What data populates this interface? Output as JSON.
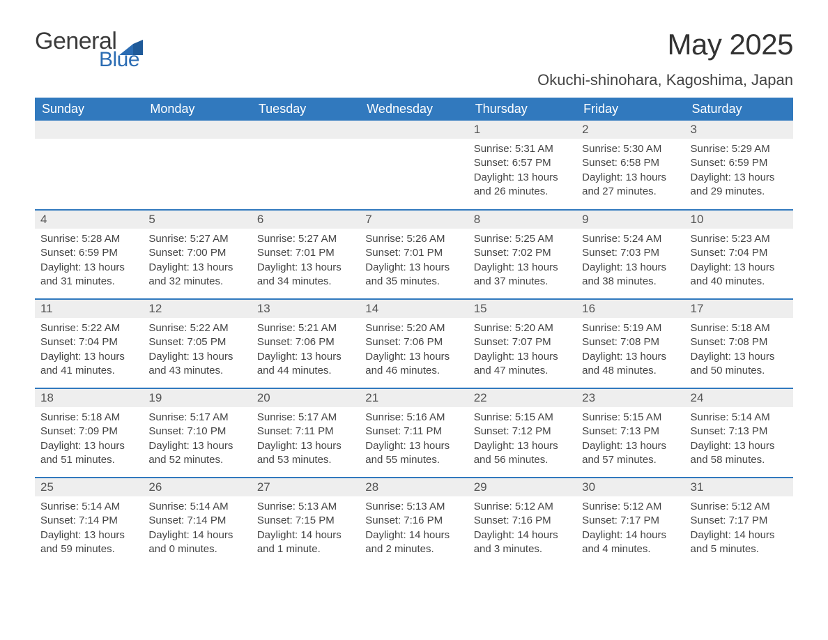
{
  "logo": {
    "general": "General",
    "blue": "Blue"
  },
  "title": "May 2025",
  "subtitle": "Okuchi-shinohara, Kagoshima, Japan",
  "colors": {
    "header_bg": "#3179be",
    "header_text": "#ffffff",
    "daynum_bg": "#eeeeee",
    "body_text": "#444444",
    "row_divider": "#3179be",
    "page_bg": "#ffffff",
    "logo_dark": "#3b3b3b",
    "logo_blue": "#2b6cb3"
  },
  "fontsizes": {
    "title": 42,
    "subtitle": 22,
    "weekday": 18,
    "daynum": 17,
    "body": 15
  },
  "weekdays": [
    "Sunday",
    "Monday",
    "Tuesday",
    "Wednesday",
    "Thursday",
    "Friday",
    "Saturday"
  ],
  "weeks": [
    [
      null,
      null,
      null,
      null,
      {
        "n": "1",
        "sunrise": "5:31 AM",
        "sunset": "6:57 PM",
        "daylight": "13 hours and 26 minutes."
      },
      {
        "n": "2",
        "sunrise": "5:30 AM",
        "sunset": "6:58 PM",
        "daylight": "13 hours and 27 minutes."
      },
      {
        "n": "3",
        "sunrise": "5:29 AM",
        "sunset": "6:59 PM",
        "daylight": "13 hours and 29 minutes."
      }
    ],
    [
      {
        "n": "4",
        "sunrise": "5:28 AM",
        "sunset": "6:59 PM",
        "daylight": "13 hours and 31 minutes."
      },
      {
        "n": "5",
        "sunrise": "5:27 AM",
        "sunset": "7:00 PM",
        "daylight": "13 hours and 32 minutes."
      },
      {
        "n": "6",
        "sunrise": "5:27 AM",
        "sunset": "7:01 PM",
        "daylight": "13 hours and 34 minutes."
      },
      {
        "n": "7",
        "sunrise": "5:26 AM",
        "sunset": "7:01 PM",
        "daylight": "13 hours and 35 minutes."
      },
      {
        "n": "8",
        "sunrise": "5:25 AM",
        "sunset": "7:02 PM",
        "daylight": "13 hours and 37 minutes."
      },
      {
        "n": "9",
        "sunrise": "5:24 AM",
        "sunset": "7:03 PM",
        "daylight": "13 hours and 38 minutes."
      },
      {
        "n": "10",
        "sunrise": "5:23 AM",
        "sunset": "7:04 PM",
        "daylight": "13 hours and 40 minutes."
      }
    ],
    [
      {
        "n": "11",
        "sunrise": "5:22 AM",
        "sunset": "7:04 PM",
        "daylight": "13 hours and 41 minutes."
      },
      {
        "n": "12",
        "sunrise": "5:22 AM",
        "sunset": "7:05 PM",
        "daylight": "13 hours and 43 minutes."
      },
      {
        "n": "13",
        "sunrise": "5:21 AM",
        "sunset": "7:06 PM",
        "daylight": "13 hours and 44 minutes."
      },
      {
        "n": "14",
        "sunrise": "5:20 AM",
        "sunset": "7:06 PM",
        "daylight": "13 hours and 46 minutes."
      },
      {
        "n": "15",
        "sunrise": "5:20 AM",
        "sunset": "7:07 PM",
        "daylight": "13 hours and 47 minutes."
      },
      {
        "n": "16",
        "sunrise": "5:19 AM",
        "sunset": "7:08 PM",
        "daylight": "13 hours and 48 minutes."
      },
      {
        "n": "17",
        "sunrise": "5:18 AM",
        "sunset": "7:08 PM",
        "daylight": "13 hours and 50 minutes."
      }
    ],
    [
      {
        "n": "18",
        "sunrise": "5:18 AM",
        "sunset": "7:09 PM",
        "daylight": "13 hours and 51 minutes."
      },
      {
        "n": "19",
        "sunrise": "5:17 AM",
        "sunset": "7:10 PM",
        "daylight": "13 hours and 52 minutes."
      },
      {
        "n": "20",
        "sunrise": "5:17 AM",
        "sunset": "7:11 PM",
        "daylight": "13 hours and 53 minutes."
      },
      {
        "n": "21",
        "sunrise": "5:16 AM",
        "sunset": "7:11 PM",
        "daylight": "13 hours and 55 minutes."
      },
      {
        "n": "22",
        "sunrise": "5:15 AM",
        "sunset": "7:12 PM",
        "daylight": "13 hours and 56 minutes."
      },
      {
        "n": "23",
        "sunrise": "5:15 AM",
        "sunset": "7:13 PM",
        "daylight": "13 hours and 57 minutes."
      },
      {
        "n": "24",
        "sunrise": "5:14 AM",
        "sunset": "7:13 PM",
        "daylight": "13 hours and 58 minutes."
      }
    ],
    [
      {
        "n": "25",
        "sunrise": "5:14 AM",
        "sunset": "7:14 PM",
        "daylight": "13 hours and 59 minutes."
      },
      {
        "n": "26",
        "sunrise": "5:14 AM",
        "sunset": "7:14 PM",
        "daylight": "14 hours and 0 minutes."
      },
      {
        "n": "27",
        "sunrise": "5:13 AM",
        "sunset": "7:15 PM",
        "daylight": "14 hours and 1 minute."
      },
      {
        "n": "28",
        "sunrise": "5:13 AM",
        "sunset": "7:16 PM",
        "daylight": "14 hours and 2 minutes."
      },
      {
        "n": "29",
        "sunrise": "5:12 AM",
        "sunset": "7:16 PM",
        "daylight": "14 hours and 3 minutes."
      },
      {
        "n": "30",
        "sunrise": "5:12 AM",
        "sunset": "7:17 PM",
        "daylight": "14 hours and 4 minutes."
      },
      {
        "n": "31",
        "sunrise": "5:12 AM",
        "sunset": "7:17 PM",
        "daylight": "14 hours and 5 minutes."
      }
    ]
  ],
  "labels": {
    "sunrise": "Sunrise: ",
    "sunset": "Sunset: ",
    "daylight": "Daylight: "
  }
}
